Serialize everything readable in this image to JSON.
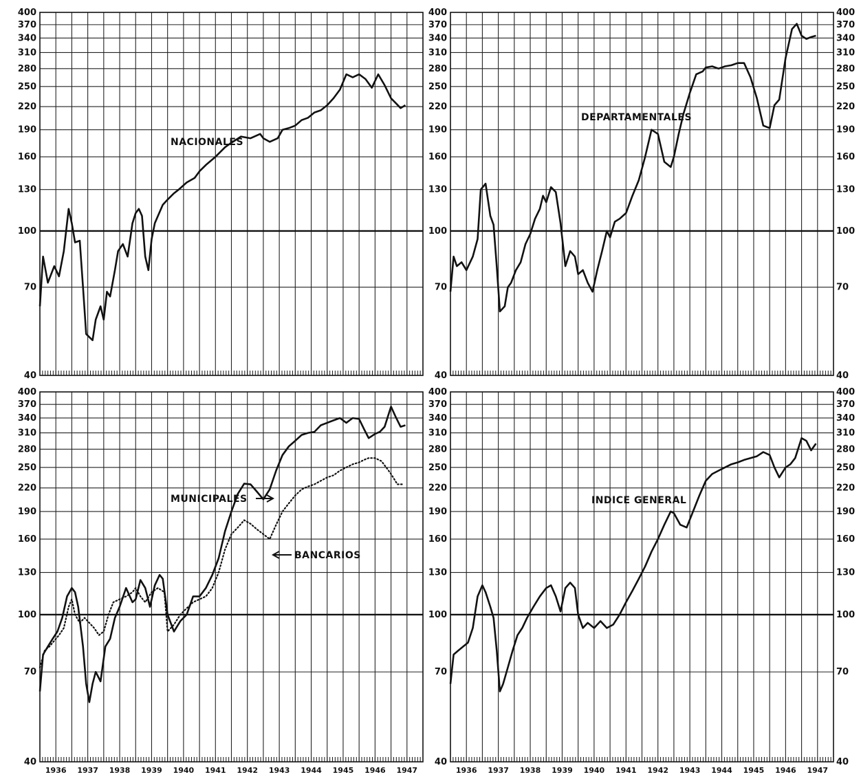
{
  "chart_data": [
    {
      "type": "line",
      "panel": "top-left",
      "scale": "log",
      "ylim": [
        40,
        400
      ],
      "xlim": [
        1936.0,
        1948.0
      ],
      "y_ticks": [
        40,
        70,
        100,
        130,
        160,
        190,
        220,
        250,
        280,
        310,
        340,
        370,
        400
      ],
      "x_ticks": [
        "1936",
        "1937",
        "1938",
        "1939",
        "1940",
        "1941",
        "1942",
        "1943",
        "1944",
        "1945",
        "1946",
        "1947"
      ],
      "series": [
        {
          "name": "NACIONALES",
          "style": "solid",
          "x": [
            1936.0,
            1936.1,
            1936.25,
            1936.45,
            1936.6,
            1936.75,
            1936.9,
            1937.0,
            1937.1,
            1937.25,
            1937.35,
            1937.45,
            1937.55,
            1937.65,
            1937.75,
            1937.9,
            1938.0,
            1938.1,
            1938.2,
            1938.35,
            1938.45,
            1938.6,
            1938.75,
            1938.9,
            1939.0,
            1939.1,
            1939.2,
            1939.3,
            1939.4,
            1939.5,
            1939.6,
            1939.7,
            1939.85,
            1940.0,
            1940.2,
            1940.35,
            1940.6,
            1940.85,
            1941.0,
            1941.2,
            1941.5,
            1941.8,
            1942.0,
            1942.3,
            1942.6,
            1942.9,
            1943.0,
            1943.2,
            1943.45,
            1943.6,
            1943.8,
            1944.0,
            1944.2,
            1944.4,
            1944.6,
            1944.8,
            1945.0,
            1945.2,
            1945.4,
            1945.6,
            1945.8,
            1946.0,
            1946.2,
            1946.4,
            1946.6,
            1946.8,
            1947.0,
            1947.15,
            1947.3,
            1947.45
          ],
          "y": [
            62,
            85,
            72,
            80,
            75,
            88,
            115,
            105,
            93,
            94,
            70,
            52,
            51,
            50,
            57,
            62,
            57,
            68,
            66,
            78,
            88,
            92,
            85,
            105,
            112,
            115,
            110,
            85,
            78,
            95,
            105,
            110,
            118,
            122,
            127,
            130,
            136,
            140,
            146,
            152,
            160,
            170,
            175,
            182,
            180,
            185,
            180,
            176,
            180,
            190,
            192,
            195,
            202,
            205,
            212,
            215,
            222,
            232,
            245,
            270,
            265,
            270,
            262,
            248,
            270,
            252,
            232,
            225,
            218,
            222
          ]
        }
      ]
    },
    {
      "type": "line",
      "panel": "top-right",
      "scale": "log",
      "ylim": [
        40,
        400
      ],
      "xlim": [
        1936.0,
        1948.0
      ],
      "y_ticks": [
        40,
        70,
        100,
        130,
        160,
        190,
        220,
        250,
        280,
        310,
        340,
        370,
        400
      ],
      "x_ticks": [
        "1936",
        "1937",
        "1938",
        "1939",
        "1940",
        "1941",
        "1942",
        "1943",
        "1944",
        "1945",
        "1946",
        "1947"
      ],
      "series": [
        {
          "name": "DEPARTAMENTALES",
          "style": "solid",
          "x": [
            1936.0,
            1936.1,
            1936.2,
            1936.35,
            1936.5,
            1936.7,
            1936.85,
            1936.95,
            1937.1,
            1937.25,
            1937.35,
            1937.45,
            1937.55,
            1937.7,
            1937.8,
            1937.9,
            1938.05,
            1938.2,
            1938.35,
            1938.5,
            1938.65,
            1938.8,
            1938.9,
            1939.0,
            1939.15,
            1939.3,
            1939.45,
            1939.6,
            1939.75,
            1939.9,
            1940.0,
            1940.15,
            1940.3,
            1940.45,
            1940.6,
            1940.75,
            1940.9,
            1941.0,
            1941.15,
            1941.3,
            1941.5,
            1941.7,
            1941.9,
            1942.1,
            1942.3,
            1942.5,
            1942.7,
            1942.9,
            1943.0,
            1943.15,
            1943.3,
            1943.5,
            1943.7,
            1943.9,
            1944.0,
            1944.2,
            1944.4,
            1944.6,
            1944.8,
            1945.0,
            1945.2,
            1945.4,
            1945.6,
            1945.8,
            1946.0,
            1946.15,
            1946.3,
            1946.5,
            1946.7,
            1946.85,
            1947.0,
            1947.15,
            1947.3,
            1947.45
          ],
          "y": [
            68,
            85,
            80,
            82,
            78,
            85,
            95,
            130,
            135,
            110,
            104,
            80,
            60,
            62,
            70,
            72,
            78,
            82,
            92,
            98,
            108,
            115,
            125,
            120,
            132,
            128,
            105,
            80,
            88,
            85,
            76,
            78,
            72,
            68,
            78,
            88,
            100,
            96,
            106,
            108,
            112,
            125,
            138,
            160,
            190,
            185,
            155,
            150,
            160,
            185,
            210,
            240,
            270,
            275,
            282,
            284,
            280,
            284,
            286,
            290,
            290,
            265,
            232,
            195,
            192,
            222,
            230,
            300,
            360,
            372,
            345,
            338,
            342,
            345
          ]
        }
      ]
    },
    {
      "type": "line",
      "panel": "bottom-left",
      "scale": "log",
      "ylim": [
        40,
        400
      ],
      "xlim": [
        1936.0,
        1948.0
      ],
      "y_ticks": [
        40,
        70,
        100,
        130,
        160,
        190,
        220,
        250,
        280,
        310,
        340,
        370,
        400
      ],
      "x_ticks": [
        "1936",
        "1937",
        "1938",
        "1939",
        "1940",
        "1941",
        "1942",
        "1943",
        "1944",
        "1945",
        "1946",
        "1947"
      ],
      "series": [
        {
          "name": "MUNICIPALES",
          "style": "solid",
          "x": [
            1936.0,
            1936.1,
            1936.25,
            1936.4,
            1936.55,
            1936.7,
            1936.85,
            1937.0,
            1937.1,
            1937.2,
            1937.35,
            1937.45,
            1937.55,
            1937.65,
            1937.75,
            1937.9,
            1938.05,
            1938.2,
            1938.35,
            1938.5,
            1938.7,
            1938.9,
            1939.0,
            1939.15,
            1939.3,
            1939.45,
            1939.6,
            1939.75,
            1939.85,
            1940.0,
            1940.2,
            1940.4,
            1940.6,
            1940.8,
            1941.0,
            1941.2,
            1941.4,
            1941.6,
            1941.8,
            1942.0,
            1942.2,
            1942.4,
            1942.6,
            1942.8,
            1943.0,
            1943.2,
            1943.4,
            1943.6,
            1943.8,
            1944.0,
            1944.2,
            1944.4,
            1944.6,
            1944.8,
            1945.0,
            1945.2,
            1945.4,
            1945.6,
            1945.8,
            1946.0,
            1946.15,
            1946.3,
            1946.5,
            1946.65,
            1946.8,
            1947.0,
            1947.15,
            1947.3,
            1947.45
          ],
          "y": [
            62,
            78,
            82,
            86,
            90,
            98,
            112,
            118,
            115,
            105,
            82,
            65,
            58,
            65,
            70,
            66,
            82,
            86,
            98,
            105,
            118,
            108,
            110,
            124,
            118,
            105,
            120,
            128,
            125,
            100,
            90,
            96,
            100,
            112,
            112,
            118,
            128,
            142,
            168,
            190,
            212,
            226,
            225,
            215,
            205,
            218,
            245,
            270,
            285,
            295,
            306,
            310,
            312,
            325,
            330,
            335,
            340,
            330,
            340,
            338,
            318,
            300,
            308,
            312,
            322,
            365,
            342,
            322,
            325
          ]
        },
        {
          "name": "BANCARIOS",
          "style": "dotted",
          "x": [
            1936.0,
            1936.15,
            1936.3,
            1936.45,
            1936.6,
            1936.75,
            1936.9,
            1937.0,
            1937.1,
            1937.25,
            1937.4,
            1937.55,
            1937.7,
            1937.85,
            1938.0,
            1938.15,
            1938.3,
            1938.5,
            1938.7,
            1938.9,
            1939.0,
            1939.15,
            1939.3,
            1939.5,
            1939.7,
            1939.9,
            1940.0,
            1940.2,
            1940.4,
            1940.6,
            1940.8,
            1941.0,
            1941.2,
            1941.4,
            1941.6,
            1941.8,
            1942.0,
            1942.2,
            1942.4,
            1942.6,
            1942.8,
            1943.0,
            1943.2,
            1943.4,
            1943.6,
            1943.8,
            1944.0,
            1944.2,
            1944.4,
            1944.6,
            1944.8,
            1945.0,
            1945.2,
            1945.4,
            1945.6,
            1945.8,
            1946.0,
            1946.15,
            1946.3,
            1946.5,
            1946.7,
            1946.85,
            1947.0,
            1947.2,
            1947.4
          ],
          "y": [
            72,
            80,
            82,
            85,
            88,
            92,
            105,
            110,
            100,
            95,
            98,
            95,
            92,
            88,
            90,
            100,
            108,
            110,
            112,
            115,
            118,
            112,
            108,
            115,
            118,
            115,
            90,
            94,
            100,
            104,
            108,
            110,
            112,
            118,
            130,
            150,
            165,
            172,
            180,
            176,
            170,
            165,
            160,
            175,
            190,
            200,
            210,
            218,
            222,
            225,
            230,
            235,
            238,
            245,
            250,
            255,
            258,
            262,
            265,
            265,
            260,
            250,
            240,
            225,
            225
          ]
        }
      ],
      "annotations": [
        "MUNICIPALES",
        "BANCARIOS"
      ]
    },
    {
      "type": "line",
      "panel": "bottom-right",
      "scale": "log",
      "ylim": [
        40,
        400
      ],
      "xlim": [
        1936.0,
        1948.0
      ],
      "y_ticks": [
        40,
        70,
        100,
        130,
        160,
        190,
        220,
        250,
        280,
        310,
        340,
        370,
        400
      ],
      "x_ticks": [
        "1936",
        "1937",
        "1938",
        "1939",
        "1940",
        "1941",
        "1942",
        "1943",
        "1944",
        "1945",
        "1946",
        "1947"
      ],
      "series": [
        {
          "name": "INDICE GENERAL",
          "style": "solid",
          "x": [
            1936.0,
            1936.1,
            1936.25,
            1936.4,
            1936.55,
            1936.7,
            1936.85,
            1937.0,
            1937.1,
            1937.25,
            1937.35,
            1937.45,
            1937.55,
            1937.65,
            1937.8,
            1937.95,
            1938.1,
            1938.25,
            1938.4,
            1938.6,
            1938.8,
            1939.0,
            1939.15,
            1939.3,
            1939.45,
            1939.6,
            1939.75,
            1939.9,
            1940.0,
            1940.15,
            1940.3,
            1940.5,
            1940.7,
            1940.9,
            1941.1,
            1941.3,
            1941.5,
            1941.7,
            1941.9,
            1942.1,
            1942.3,
            1942.5,
            1942.7,
            1942.9,
            1943.0,
            1943.2,
            1943.4,
            1943.6,
            1943.8,
            1944.0,
            1944.2,
            1944.4,
            1944.6,
            1944.8,
            1945.0,
            1945.2,
            1945.4,
            1945.6,
            1945.8,
            1946.0,
            1946.15,
            1946.3,
            1946.5,
            1946.65,
            1946.8,
            1947.0,
            1947.15,
            1947.3,
            1947.45
          ],
          "y": [
            65,
            78,
            80,
            82,
            84,
            92,
            112,
            120,
            115,
            105,
            98,
            80,
            62,
            65,
            72,
            80,
            88,
            92,
            98,
            105,
            112,
            118,
            120,
            112,
            102,
            118,
            122,
            118,
            100,
            92,
            95,
            92,
            96,
            92,
            94,
            100,
            108,
            116,
            125,
            135,
            148,
            160,
            175,
            190,
            188,
            175,
            172,
            190,
            210,
            230,
            240,
            245,
            250,
            255,
            258,
            262,
            265,
            268,
            275,
            270,
            250,
            235,
            250,
            255,
            265,
            300,
            295,
            278,
            290
          ]
        }
      ]
    }
  ],
  "labels": {
    "nacionales": "NACIONALES",
    "departamentales": "DEPARTAMENTALES",
    "municipales": "MUNICIPALES",
    "bancarios": "BANCARIOS",
    "indice_general": "INDICE GENERAL"
  }
}
